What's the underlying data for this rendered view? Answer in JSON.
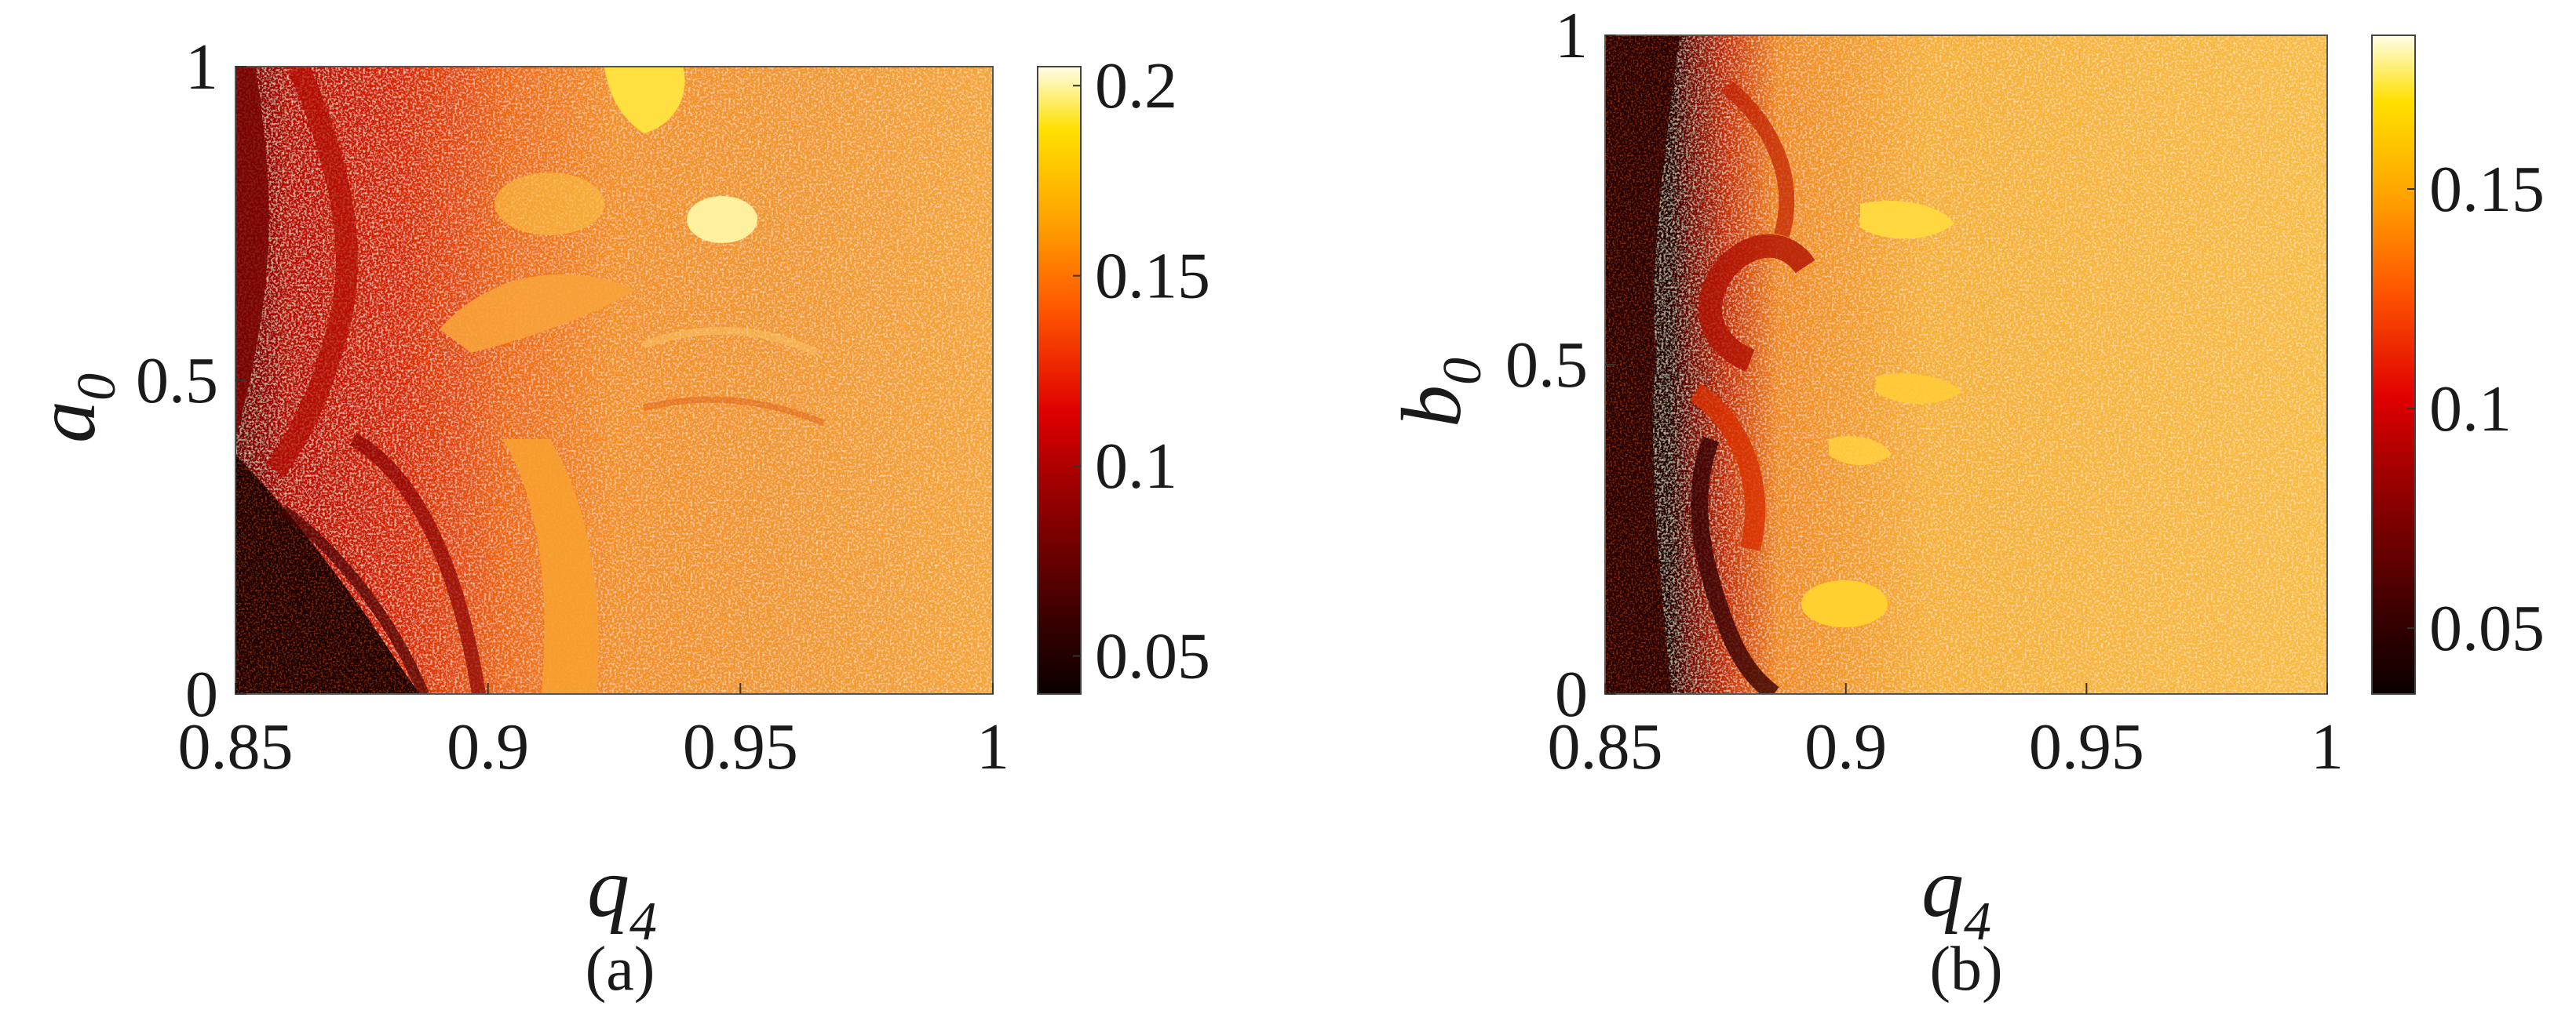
{
  "chart_data": [
    {
      "type": "heatmap",
      "panel_label": "(a)",
      "x": {
        "symbol": "q",
        "subscript": "4",
        "range": [
          0.85,
          1.0
        ],
        "ticks": [
          "0.85",
          "0.9",
          "0.95",
          "1"
        ],
        "tick_values": [
          0.85,
          0.9,
          0.95,
          1.0
        ]
      },
      "y": {
        "symbol": "a",
        "subscript": "0",
        "range": [
          0,
          1
        ],
        "ticks": [
          "0",
          "0.5",
          "1"
        ],
        "tick_values": [
          0,
          0.5,
          1
        ]
      },
      "colorbar": {
        "range": [
          0.04,
          0.205
        ],
        "ticks": [
          "0.05",
          "0.1",
          "0.15",
          "0.2"
        ],
        "tick_values": [
          0.05,
          0.1,
          0.15,
          0.2
        ],
        "colormap": "hot"
      },
      "regions": [
        {
          "desc": "dark low-value region at small q4 and small a0",
          "value": 0.045
        },
        {
          "desc": "red band at q4 0.85-0.90",
          "value": 0.09
        },
        {
          "desc": "orange textured region at q4 > 0.93",
          "value": 0.14
        },
        {
          "desc": "bright yellow islands near q4 0.93, a0 0.75-1.0",
          "value": 0.19
        }
      ]
    },
    {
      "type": "heatmap",
      "panel_label": "(b)",
      "x": {
        "symbol": "q",
        "subscript": "4",
        "range": [
          0.85,
          1.0
        ],
        "ticks": [
          "0.85",
          "0.9",
          "0.95",
          "1"
        ],
        "tick_values": [
          0.85,
          0.9,
          0.95,
          1.0
        ]
      },
      "y": {
        "symbol": "b",
        "subscript": "0",
        "range": [
          0,
          1
        ],
        "ticks": [
          "0",
          "0.5",
          "1"
        ],
        "tick_values": [
          0,
          0.5,
          1
        ]
      },
      "colorbar": {
        "range": [
          0.035,
          0.185
        ],
        "ticks": [
          "0.05",
          "0.1",
          "0.15"
        ],
        "tick_values": [
          0.05,
          0.1,
          0.15
        ],
        "colormap": "hot"
      },
      "regions": [
        {
          "desc": "near-black strip at q4 0.85-0.87",
          "value": 0.04
        },
        {
          "desc": "red fractal boundary at q4 0.87-0.90",
          "value": 0.1
        },
        {
          "desc": "orange-yellow textured region at q4 > 0.90",
          "value": 0.155
        },
        {
          "desc": "bright yellow islands near q4 0.91-0.93",
          "value": 0.175
        }
      ]
    }
  ]
}
